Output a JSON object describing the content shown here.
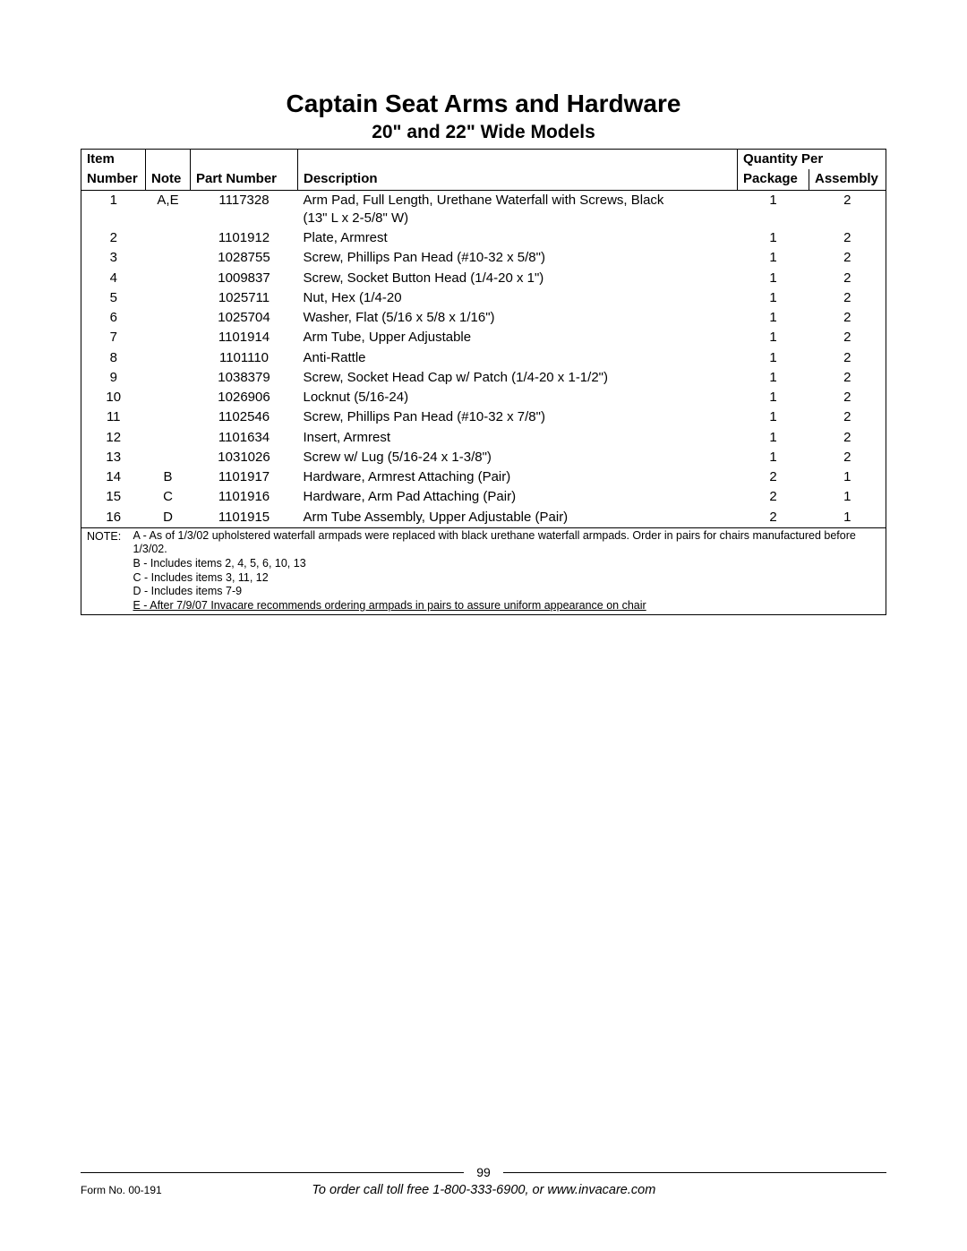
{
  "title": "Captain Seat Arms and Hardware",
  "subtitle": "20\" and 22\" Wide Models",
  "columns": {
    "item_top": "Item",
    "item": "Number",
    "note": "Note",
    "part": "Part Number",
    "desc": "Description",
    "qty_per": "Quantity Per",
    "pkg": "Package",
    "asm": "Assembly"
  },
  "rows": [
    {
      "item": "1",
      "note": "A,E",
      "part": "1117328",
      "desc": "Arm Pad, Full Length, Urethane Waterfall with Screws, Black\n(13\" L x 2-5/8\" W)",
      "pkg": "1",
      "asm": "2"
    },
    {
      "item": "2",
      "note": "",
      "part": "1101912",
      "desc": "Plate, Armrest",
      "pkg": "1",
      "asm": "2"
    },
    {
      "item": "3",
      "note": "",
      "part": "1028755",
      "desc": "Screw, Phillips Pan Head (#10-32 x 5/8\")",
      "pkg": "1",
      "asm": "2"
    },
    {
      "item": "4",
      "note": "",
      "part": "1009837",
      "desc": "Screw, Socket Button Head (1/4-20 x 1\")",
      "pkg": "1",
      "asm": "2"
    },
    {
      "item": "5",
      "note": "",
      "part": "1025711",
      "desc": "Nut, Hex (1/4-20",
      "pkg": "1",
      "asm": "2"
    },
    {
      "item": "6",
      "note": "",
      "part": "1025704",
      "desc": "Washer, Flat (5/16 x 5/8 x 1/16\")",
      "pkg": "1",
      "asm": "2"
    },
    {
      "item": "7",
      "note": "",
      "part": "1101914",
      "desc": "Arm Tube, Upper Adjustable",
      "pkg": "1",
      "asm": "2"
    },
    {
      "item": "8",
      "note": "",
      "part": "1101110",
      "desc": "Anti-Rattle",
      "pkg": "1",
      "asm": "2"
    },
    {
      "item": "9",
      "note": "",
      "part": "1038379",
      "desc": "Screw, Socket Head Cap w/ Patch (1/4-20 x 1-1/2\")",
      "pkg": "1",
      "asm": "2"
    },
    {
      "item": "10",
      "note": "",
      "part": "1026906",
      "desc": "Locknut (5/16-24)",
      "pkg": "1",
      "asm": "2"
    },
    {
      "item": "11",
      "note": "",
      "part": "1102546",
      "desc": "Screw, Phillips Pan Head (#10-32 x 7/8\")",
      "pkg": "1",
      "asm": "2"
    },
    {
      "item": "12",
      "note": "",
      "part": "1101634",
      "desc": "Insert, Armrest",
      "pkg": "1",
      "asm": "2"
    },
    {
      "item": "13",
      "note": "",
      "part": "1031026",
      "desc": "Screw w/ Lug (5/16-24 x 1-3/8\")",
      "pkg": "1",
      "asm": "2"
    },
    {
      "item": "14",
      "note": "B",
      "part": "1101917",
      "desc": "Hardware, Armrest Attaching (Pair)",
      "pkg": "2",
      "asm": "1"
    },
    {
      "item": "15",
      "note": "C",
      "part": "1101916",
      "desc": "Hardware, Arm Pad Attaching (Pair)",
      "pkg": "2",
      "asm": "1"
    },
    {
      "item": "16",
      "note": "D",
      "part": "1101915",
      "desc": "Arm Tube Assembly, Upper Adjustable (Pair)",
      "pkg": "2",
      "asm": "1"
    }
  ],
  "notes_label": "NOTE:",
  "notes": {
    "a": "A - As of 1/3/02 upholstered waterfall armpads were replaced with black urethane waterfall armpads.  Order in pairs for chairs manufactured before 1/3/02.",
    "b": "B - Includes items 2, 4, 5, 6, 10, 13",
    "c": "C - Includes items 3, 11, 12",
    "d": "D - Includes items 7-9",
    "e": "E - After 7/9/07 Invacare recommends ordering armpads in pairs to assure uniform appearance on chair"
  },
  "footer": {
    "page_number": "99",
    "form_no": "Form No. 00-191",
    "order_line": "To order call toll free 1-800-333-6900, or www.invacare.com"
  }
}
